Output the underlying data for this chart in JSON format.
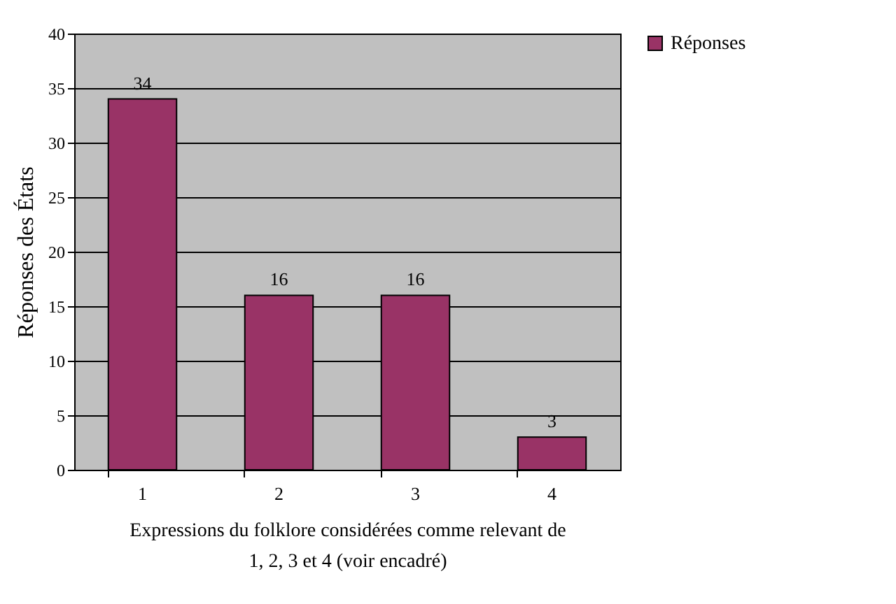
{
  "chart_data": {
    "type": "bar",
    "xlabel": "Expressions du folklore considérées comme relevant de\n1, 2, 3 et 4 (voir encadré)",
    "ylabel": "Réponses des États",
    "categories": [
      "1",
      "2",
      "3",
      "4"
    ],
    "series": [
      {
        "name": "Réponses",
        "color": "#993366",
        "values": [
          34,
          16,
          16,
          3
        ]
      }
    ],
    "ylim": [
      0,
      40
    ],
    "yticks": [
      0,
      5,
      10,
      15,
      20,
      25,
      30,
      35,
      40
    ],
    "grid": "y",
    "legend": "right",
    "data_labels": true
  }
}
